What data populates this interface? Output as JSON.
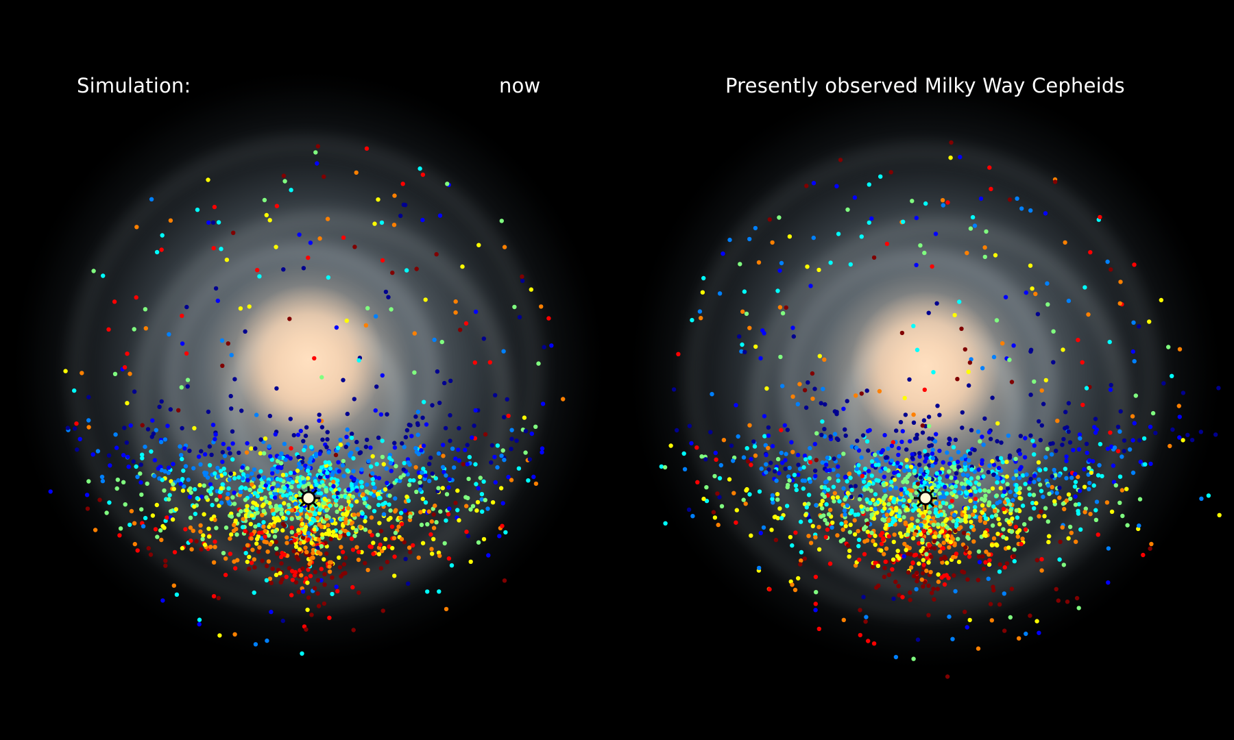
{
  "panels": {
    "left": {
      "title": "Simulation:",
      "time_label": "now"
    },
    "right": {
      "title": "Presently observed Milky Way Cepheids"
    }
  },
  "icons": {
    "sun_marker": "sun-icon"
  },
  "colors": {
    "background": "#000000",
    "galaxy_core": "#f9d9b8",
    "galaxy_disk": "#6f7c87",
    "text": "#ffffff",
    "palette": [
      "#00008f",
      "#0000ff",
      "#0080ff",
      "#00ffff",
      "#80ff80",
      "#ffff00",
      "#ff8000",
      "#ff0000",
      "#800000"
    ]
  }
}
